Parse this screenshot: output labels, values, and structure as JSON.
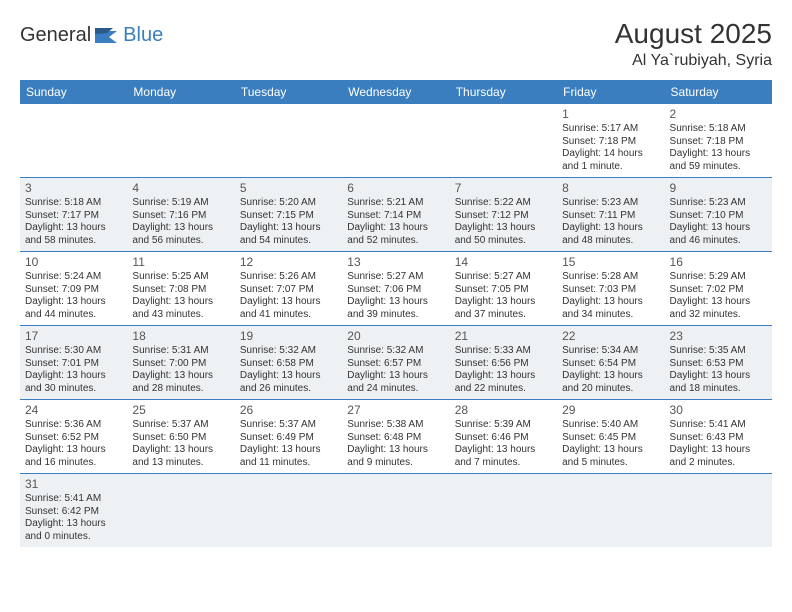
{
  "logo": {
    "part1": "General",
    "part2": "Blue"
  },
  "title": "August 2025",
  "location": "Al Ya`rubiyah, Syria",
  "colors": {
    "headerBg": "#3a7ebf",
    "headerText": "#ffffff",
    "altRowBg": "#eef1f3",
    "rowBorder": "#3a7ebf",
    "textColor": "#333333",
    "logoBlue": "#3a7ebf"
  },
  "dayHeaders": [
    "Sunday",
    "Monday",
    "Tuesday",
    "Wednesday",
    "Thursday",
    "Friday",
    "Saturday"
  ],
  "weeks": [
    [
      null,
      null,
      null,
      null,
      null,
      {
        "n": "1",
        "sr": "5:17 AM",
        "ss": "7:18 PM",
        "dl": "14 hours and 1 minute."
      },
      {
        "n": "2",
        "sr": "5:18 AM",
        "ss": "7:18 PM",
        "dl": "13 hours and 59 minutes."
      }
    ],
    [
      {
        "n": "3",
        "sr": "5:18 AM",
        "ss": "7:17 PM",
        "dl": "13 hours and 58 minutes."
      },
      {
        "n": "4",
        "sr": "5:19 AM",
        "ss": "7:16 PM",
        "dl": "13 hours and 56 minutes."
      },
      {
        "n": "5",
        "sr": "5:20 AM",
        "ss": "7:15 PM",
        "dl": "13 hours and 54 minutes."
      },
      {
        "n": "6",
        "sr": "5:21 AM",
        "ss": "7:14 PM",
        "dl": "13 hours and 52 minutes."
      },
      {
        "n": "7",
        "sr": "5:22 AM",
        "ss": "7:12 PM",
        "dl": "13 hours and 50 minutes."
      },
      {
        "n": "8",
        "sr": "5:23 AM",
        "ss": "7:11 PM",
        "dl": "13 hours and 48 minutes."
      },
      {
        "n": "9",
        "sr": "5:23 AM",
        "ss": "7:10 PM",
        "dl": "13 hours and 46 minutes."
      }
    ],
    [
      {
        "n": "10",
        "sr": "5:24 AM",
        "ss": "7:09 PM",
        "dl": "13 hours and 44 minutes."
      },
      {
        "n": "11",
        "sr": "5:25 AM",
        "ss": "7:08 PM",
        "dl": "13 hours and 43 minutes."
      },
      {
        "n": "12",
        "sr": "5:26 AM",
        "ss": "7:07 PM",
        "dl": "13 hours and 41 minutes."
      },
      {
        "n": "13",
        "sr": "5:27 AM",
        "ss": "7:06 PM",
        "dl": "13 hours and 39 minutes."
      },
      {
        "n": "14",
        "sr": "5:27 AM",
        "ss": "7:05 PM",
        "dl": "13 hours and 37 minutes."
      },
      {
        "n": "15",
        "sr": "5:28 AM",
        "ss": "7:03 PM",
        "dl": "13 hours and 34 minutes."
      },
      {
        "n": "16",
        "sr": "5:29 AM",
        "ss": "7:02 PM",
        "dl": "13 hours and 32 minutes."
      }
    ],
    [
      {
        "n": "17",
        "sr": "5:30 AM",
        "ss": "7:01 PM",
        "dl": "13 hours and 30 minutes."
      },
      {
        "n": "18",
        "sr": "5:31 AM",
        "ss": "7:00 PM",
        "dl": "13 hours and 28 minutes."
      },
      {
        "n": "19",
        "sr": "5:32 AM",
        "ss": "6:58 PM",
        "dl": "13 hours and 26 minutes."
      },
      {
        "n": "20",
        "sr": "5:32 AM",
        "ss": "6:57 PM",
        "dl": "13 hours and 24 minutes."
      },
      {
        "n": "21",
        "sr": "5:33 AM",
        "ss": "6:56 PM",
        "dl": "13 hours and 22 minutes."
      },
      {
        "n": "22",
        "sr": "5:34 AM",
        "ss": "6:54 PM",
        "dl": "13 hours and 20 minutes."
      },
      {
        "n": "23",
        "sr": "5:35 AM",
        "ss": "6:53 PM",
        "dl": "13 hours and 18 minutes."
      }
    ],
    [
      {
        "n": "24",
        "sr": "5:36 AM",
        "ss": "6:52 PM",
        "dl": "13 hours and 16 minutes."
      },
      {
        "n": "25",
        "sr": "5:37 AM",
        "ss": "6:50 PM",
        "dl": "13 hours and 13 minutes."
      },
      {
        "n": "26",
        "sr": "5:37 AM",
        "ss": "6:49 PM",
        "dl": "13 hours and 11 minutes."
      },
      {
        "n": "27",
        "sr": "5:38 AM",
        "ss": "6:48 PM",
        "dl": "13 hours and 9 minutes."
      },
      {
        "n": "28",
        "sr": "5:39 AM",
        "ss": "6:46 PM",
        "dl": "13 hours and 7 minutes."
      },
      {
        "n": "29",
        "sr": "5:40 AM",
        "ss": "6:45 PM",
        "dl": "13 hours and 5 minutes."
      },
      {
        "n": "30",
        "sr": "5:41 AM",
        "ss": "6:43 PM",
        "dl": "13 hours and 2 minutes."
      }
    ],
    [
      {
        "n": "31",
        "sr": "5:41 AM",
        "ss": "6:42 PM",
        "dl": "13 hours and 0 minutes."
      },
      null,
      null,
      null,
      null,
      null,
      null
    ]
  ],
  "labels": {
    "sunrise": "Sunrise:",
    "sunset": "Sunset:",
    "daylight": "Daylight:"
  }
}
